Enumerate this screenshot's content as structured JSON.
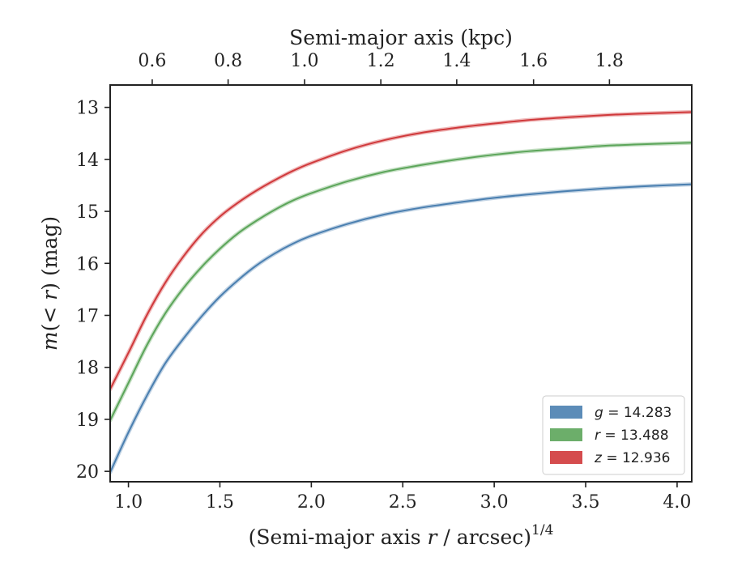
{
  "chart_data": {
    "type": "line",
    "xlabel_parts": {
      "pre": "(Semi-major axis ",
      "var": "r",
      "post": " / arcsec)",
      "sup": "1/4"
    },
    "ylabel_parts": {
      "m": "m",
      "paren_open": "(",
      "lt": "< ",
      "r": "r",
      "paren_close": ")",
      "unit": " (mag)"
    },
    "top_xlabel": "Semi-major axis (kpc)",
    "xlim": [
      0.9,
      4.08
    ],
    "ylim": [
      20.2,
      12.57
    ],
    "y_inverted": true,
    "xticks": [
      1.0,
      1.5,
      2.0,
      2.5,
      3.0,
      3.5,
      4.0
    ],
    "xtick_labels": [
      "1.0",
      "1.5",
      "2.0",
      "2.5",
      "3.0",
      "3.5",
      "4.0"
    ],
    "yticks": [
      13,
      14,
      15,
      16,
      17,
      18,
      19,
      20
    ],
    "ytick_labels": [
      "13",
      "14",
      "15",
      "16",
      "17",
      "18",
      "19",
      "20"
    ],
    "top_xticks_in_bottom_units": [
      1.13,
      1.545,
      1.963,
      2.38,
      2.795,
      3.215,
      3.63
    ],
    "top_xtick_labels": [
      "0.6",
      "0.8",
      "1.0",
      "1.2",
      "1.4",
      "1.6",
      "1.8"
    ],
    "grid": false,
    "legend_position": "lower-right",
    "series": [
      {
        "label_var": "g",
        "label_value": "= 14.283",
        "color": "#4a7fb0",
        "x": [
          0.9,
          1.0,
          1.1,
          1.2,
          1.3,
          1.4,
          1.5,
          1.6,
          1.7,
          1.8,
          1.9,
          2.0,
          2.2,
          2.4,
          2.6,
          2.8,
          3.0,
          3.2,
          3.4,
          3.6,
          3.8,
          4.08
        ],
        "y": [
          20.02,
          19.25,
          18.55,
          17.93,
          17.45,
          17.02,
          16.64,
          16.32,
          16.04,
          15.81,
          15.62,
          15.47,
          15.24,
          15.06,
          14.93,
          14.83,
          14.74,
          14.67,
          14.61,
          14.56,
          14.52,
          14.48
        ]
      },
      {
        "label_var": "r",
        "label_value": "= 13.488",
        "color": "#5ca55a",
        "x": [
          0.9,
          1.0,
          1.1,
          1.2,
          1.3,
          1.4,
          1.5,
          1.6,
          1.7,
          1.8,
          1.9,
          2.0,
          2.2,
          2.4,
          2.6,
          2.8,
          3.0,
          3.2,
          3.4,
          3.6,
          3.8,
          4.08
        ],
        "y": [
          19.02,
          18.3,
          17.58,
          16.97,
          16.48,
          16.07,
          15.72,
          15.42,
          15.18,
          14.97,
          14.79,
          14.65,
          14.42,
          14.24,
          14.11,
          14.0,
          13.91,
          13.84,
          13.79,
          13.74,
          13.71,
          13.68
        ]
      },
      {
        "label_var": "z",
        "label_value": "= 12.936",
        "color": "#d0393b",
        "x": [
          0.9,
          1.0,
          1.1,
          1.2,
          1.3,
          1.4,
          1.5,
          1.6,
          1.7,
          1.8,
          1.9,
          2.0,
          2.2,
          2.4,
          2.6,
          2.8,
          3.0,
          3.2,
          3.4,
          3.6,
          3.8,
          4.08
        ],
        "y": [
          18.42,
          17.72,
          17.0,
          16.38,
          15.87,
          15.44,
          15.1,
          14.83,
          14.6,
          14.4,
          14.22,
          14.07,
          13.82,
          13.63,
          13.49,
          13.39,
          13.31,
          13.24,
          13.19,
          13.15,
          13.12,
          13.09
        ]
      }
    ]
  }
}
